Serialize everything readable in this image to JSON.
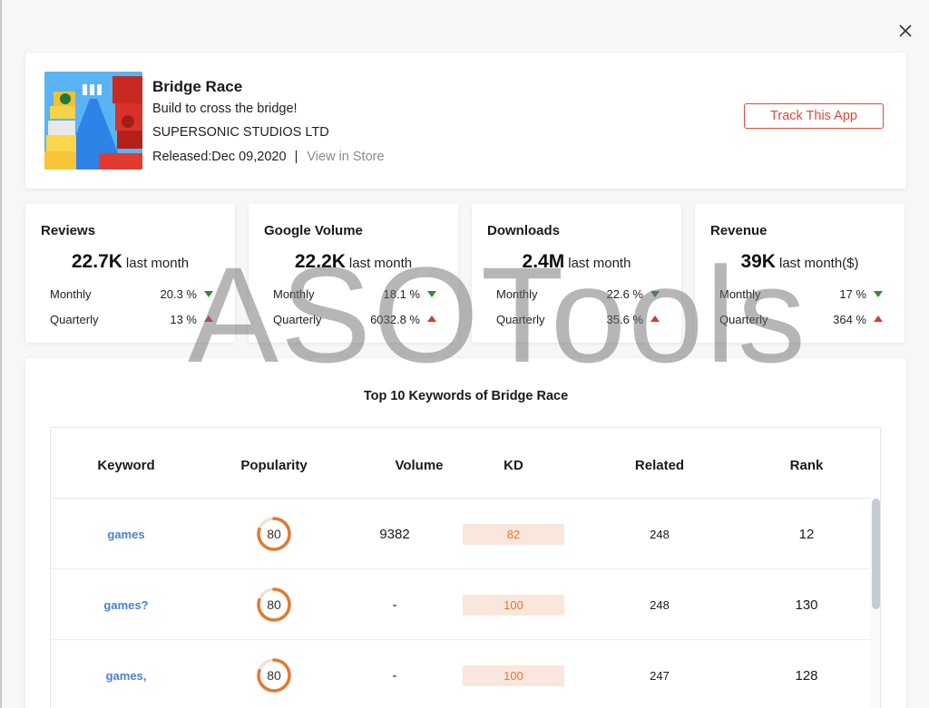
{
  "app": {
    "title": "Bridge Race",
    "subtitle": "Build to cross the bridge!",
    "developer": "SUPERSONIC STUDIOS LTD",
    "released": "Released:Dec 09,2020",
    "separator": "|",
    "view_store": "View in Store",
    "track_button": "Track This App"
  },
  "stats": [
    {
      "label": "Reviews",
      "value": "22.7K",
      "unit": "last month",
      "monthly_label": "Monthly",
      "monthly_value": "20.3 %",
      "monthly_trend": "down",
      "quarterly_label": "Quarterly",
      "quarterly_value": "13 %",
      "quarterly_trend": "up"
    },
    {
      "label": "Google Volume",
      "value": "22.2K",
      "unit": "last month",
      "monthly_label": "Monthly",
      "monthly_value": "18.1 %",
      "monthly_trend": "down",
      "quarterly_label": "Quarterly",
      "quarterly_value": "6032.8 %",
      "quarterly_trend": "up"
    },
    {
      "label": "Downloads",
      "value": "2.4M",
      "unit": "last month",
      "monthly_label": "Monthly",
      "monthly_value": "22.6 %",
      "monthly_trend": "down",
      "quarterly_label": "Quarterly",
      "quarterly_value": "35.6 %",
      "quarterly_trend": "up"
    },
    {
      "label": "Revenue",
      "value": "39K",
      "unit": "last month($)",
      "monthly_label": "Monthly",
      "monthly_value": "17 %",
      "monthly_trend": "down",
      "quarterly_label": "Quarterly",
      "quarterly_value": "364 %",
      "quarterly_trend": "up"
    }
  ],
  "watermark": "ASOTools",
  "keywords": {
    "title": "Top 10 Keywords of Bridge Race",
    "columns": [
      "Keyword",
      "Popularity",
      "Volume",
      "KD",
      "Related",
      "Rank"
    ],
    "rows": [
      {
        "keyword": "games",
        "popularity": "80",
        "volume": "9382",
        "kd": "82",
        "related": "248",
        "rank": "12"
      },
      {
        "keyword": "games?",
        "popularity": "80",
        "volume": "-",
        "kd": "100",
        "related": "248",
        "rank": "130"
      },
      {
        "keyword": "games,",
        "popularity": "80",
        "volume": "-",
        "kd": "100",
        "related": "247",
        "rank": "128"
      }
    ]
  },
  "colors": {
    "accent_red": "#e0483b",
    "trend_down": "#2e8b36",
    "trend_up": "#e0352b",
    "keyword_link": "#4a7fd4",
    "kd_text": "#e07a35",
    "kd_bg": "#f9e6dc",
    "ring": "#e07a35"
  }
}
